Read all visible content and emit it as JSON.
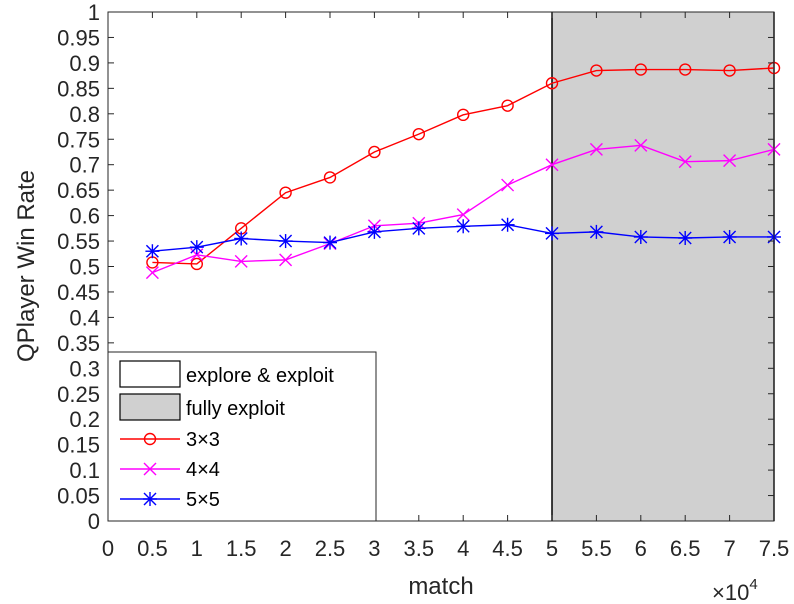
{
  "chart_data": {
    "type": "line",
    "xlabel": "match",
    "ylabel": "QPlayer Win Rate",
    "x_exponent_label": "×10",
    "x_exponent_power": "4",
    "xlim": [
      0,
      7.5
    ],
    "ylim": [
      0,
      1
    ],
    "x_ticks": [
      "0",
      "0.5",
      "1",
      "1.5",
      "2",
      "2.5",
      "3",
      "3.5",
      "4",
      "4.5",
      "5",
      "5.5",
      "6",
      "6.5",
      "7",
      "7.5"
    ],
    "y_ticks": [
      "0",
      "0.05",
      "0.1",
      "0.15",
      "0.2",
      "0.25",
      "0.3",
      "0.35",
      "0.4",
      "0.45",
      "0.5",
      "0.55",
      "0.6",
      "0.65",
      "0.7",
      "0.75",
      "0.8",
      "0.85",
      "0.9",
      "0.95",
      "1"
    ],
    "x": [
      0.5,
      1,
      1.5,
      2,
      2.5,
      3,
      3.5,
      4,
      4.5,
      5,
      5.5,
      6,
      6.5,
      7,
      7.5
    ],
    "series": [
      {
        "name": "3×3",
        "color": "#ff0000",
        "marker": "circle",
        "values": [
          0.508,
          0.505,
          0.575,
          0.645,
          0.675,
          0.725,
          0.76,
          0.798,
          0.816,
          0.86,
          0.885,
          0.887,
          0.887,
          0.885,
          0.89
        ]
      },
      {
        "name": "4×4",
        "color": "#ff00ff",
        "marker": "x",
        "values": [
          0.488,
          0.523,
          0.51,
          0.513,
          0.545,
          0.58,
          0.585,
          0.602,
          0.66,
          0.7,
          0.73,
          0.738,
          0.706,
          0.708,
          0.73
        ]
      },
      {
        "name": "5×5",
        "color": "#0000ff",
        "marker": "asterisk",
        "values": [
          0.53,
          0.538,
          0.555,
          0.55,
          0.547,
          0.568,
          0.575,
          0.579,
          0.582,
          0.565,
          0.568,
          0.558,
          0.556,
          0.558,
          0.558
        ]
      }
    ],
    "regions": [
      {
        "label": "explore & exploit",
        "x_range": [
          0,
          5
        ],
        "color": "#ffffff"
      },
      {
        "label": "fully exploit",
        "x_range": [
          5,
          7.5
        ],
        "color": "#d0d0d0"
      }
    ],
    "legend_position": "lower-left",
    "grid": false
  }
}
